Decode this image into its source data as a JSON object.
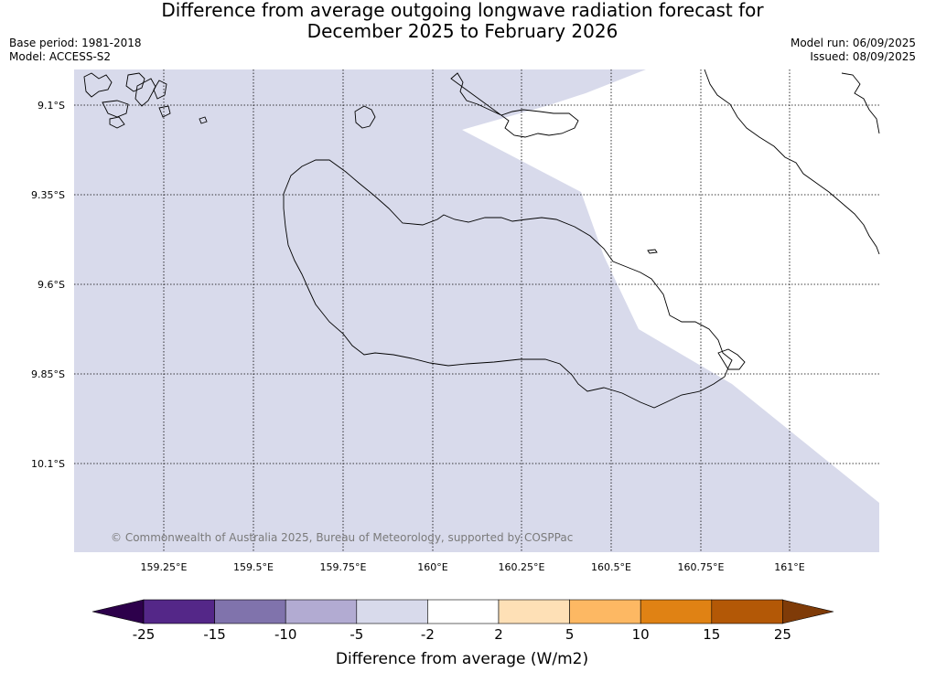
{
  "title": {
    "line1": "Difference from average outgoing longwave radiation forecast for",
    "line2": "December 2025 to February 2026"
  },
  "meta": {
    "base_period": "Base period: 1981-2018",
    "model": "Model: ACCESS-S2",
    "model_run": "Model run: 06/09/2025",
    "issued": "Issued: 08/09/2025"
  },
  "map": {
    "latitude_labels": [
      "9.1°S",
      "9.35°S",
      "9.6°S",
      "9.85°S",
      "10.1°S"
    ],
    "longitude_labels": [
      "159.25°E",
      "159.5°E",
      "159.75°E",
      "160°E",
      "160.25°E",
      "160.5°E",
      "160.75°E",
      "161°E"
    ],
    "copyright": "© Commonwealth of Australia 2025, Bureau of Meteorology, supported by COSPPac",
    "region_categories": {
      "shaded_region": "-5 to -2",
      "unshaded_region": "-2 to 2"
    }
  },
  "colorbar": {
    "title": "Difference from average (W/m2)",
    "tick_labels": [
      "-25",
      "-15",
      "-10",
      "-5",
      "-2",
      "2",
      "5",
      "10",
      "15",
      "25"
    ],
    "under_color": "#2d004b",
    "over_color": "#7f3b08",
    "colors": [
      "#542788",
      "#8073ac",
      "#b2abd2",
      "#d8daeb",
      "#ffffff",
      "#fee0b6",
      "#fdb863",
      "#e08214",
      "#b35806"
    ]
  }
}
